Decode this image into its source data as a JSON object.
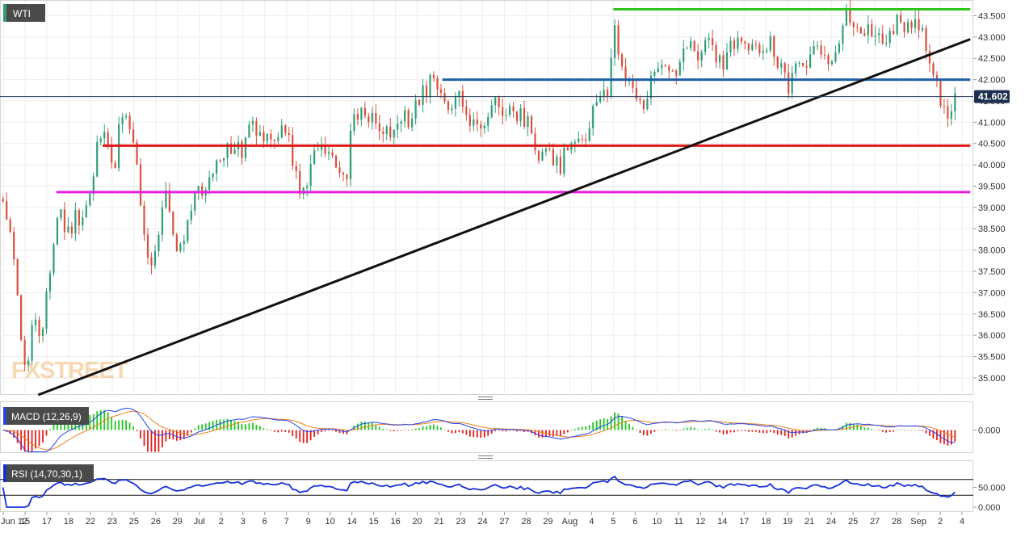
{
  "chart_data": [
    {
      "type": "candlestick",
      "panel": "price",
      "title": "WTI",
      "watermark": "FXSTREET",
      "ylim": [
        34.6,
        43.85
      ],
      "y_ticks": [
        "35.000",
        "35.500",
        "36.000",
        "36.500",
        "37.000",
        "37.500",
        "38.000",
        "38.500",
        "39.000",
        "39.500",
        "40.000",
        "40.500",
        "41.000",
        "41.500",
        "42.000",
        "42.500",
        "43.000",
        "43.500"
      ],
      "y_tick_values": [
        35,
        35.5,
        36,
        36.5,
        37,
        37.5,
        38,
        38.5,
        39,
        39.5,
        40,
        40.5,
        41,
        41.5,
        42,
        42.5,
        43,
        43.5
      ],
      "last_price_label": "41.602",
      "last_price": 41.602,
      "x_ticks": [
        "Jun 12",
        "15",
        "17",
        "18",
        "22",
        "23",
        "25",
        "26",
        "29",
        "Jul",
        "2",
        "3",
        "6",
        "7",
        "9",
        "10",
        "14",
        "15",
        "16",
        "20",
        "21",
        "23",
        "24",
        "27",
        "28",
        "29",
        "Aug",
        "4",
        "5",
        "6",
        "10",
        "11",
        "12",
        "14",
        "17",
        "18",
        "19",
        "21",
        "24",
        "25",
        "27",
        "28",
        "Sep",
        "2",
        "4"
      ],
      "close_path": [
        [
          0,
          39.2
        ],
        [
          1.2,
          38.0
        ],
        [
          2.0,
          36.2
        ],
        [
          2.6,
          35.1
        ],
        [
          3.4,
          36.7
        ],
        [
          4.1,
          35.8
        ],
        [
          4.6,
          36.9
        ],
        [
          5.4,
          38.3
        ],
        [
          6.0,
          38.9
        ],
        [
          6.8,
          38.3
        ],
        [
          7.5,
          38.9
        ],
        [
          8.2,
          38.5
        ],
        [
          9.0,
          39.3
        ],
        [
          9.8,
          40.5
        ],
        [
          10.5,
          40.6
        ],
        [
          11.4,
          40.0
        ],
        [
          12.1,
          41.4
        ],
        [
          12.9,
          41.0
        ],
        [
          13.5,
          40.1
        ],
        [
          14.2,
          38.3
        ],
        [
          15.0,
          37.3
        ],
        [
          15.7,
          38.5
        ],
        [
          16.5,
          39.3
        ],
        [
          17.2,
          38.2
        ],
        [
          18.0,
          37.9
        ],
        [
          18.8,
          39.0
        ],
        [
          19.5,
          39.4
        ],
        [
          20.3,
          39.1
        ],
        [
          21.0,
          39.8
        ],
        [
          21.8,
          40.1
        ],
        [
          22.6,
          40.3
        ],
        [
          23.4,
          40.5
        ],
        [
          24.1,
          40.3
        ],
        [
          25.0,
          40.9
        ],
        [
          25.8,
          40.6
        ],
        [
          26.6,
          40.8
        ],
        [
          27.4,
          40.5
        ],
        [
          28.2,
          40.8
        ],
        [
          29.0,
          40.3
        ],
        [
          29.6,
          39.6
        ],
        [
          30.4,
          39.3
        ],
        [
          31.2,
          40.6
        ],
        [
          31.9,
          40.4
        ],
        [
          32.7,
          40.2
        ],
        [
          33.5,
          39.8
        ],
        [
          34.3,
          39.5
        ],
        [
          35.0,
          40.9
        ],
        [
          35.8,
          41.2
        ],
        [
          36.6,
          41.1
        ],
        [
          37.4,
          40.9
        ],
        [
          38.2,
          40.7
        ],
        [
          39.0,
          40.8
        ],
        [
          39.8,
          41.0
        ],
        [
          40.6,
          41.1
        ],
        [
          41.4,
          41.5
        ],
        [
          42.2,
          41.7
        ],
        [
          43.0,
          42.0
        ],
        [
          43.8,
          41.6
        ],
        [
          44.6,
          41.3
        ],
        [
          45.4,
          41.8
        ],
        [
          46.2,
          41.1
        ],
        [
          47.0,
          40.8
        ],
        [
          47.8,
          41.1
        ],
        [
          48.6,
          41.2
        ],
        [
          49.4,
          41.6
        ],
        [
          50.2,
          41.3
        ],
        [
          51.0,
          41.4
        ],
        [
          51.8,
          41.1
        ],
        [
          52.6,
          40.9
        ],
        [
          53.4,
          40.3
        ],
        [
          54.2,
          40.5
        ],
        [
          55.0,
          40.2
        ],
        [
          55.8,
          40.0
        ],
        [
          56.6,
          40.5
        ],
        [
          57.4,
          40.8
        ],
        [
          58.2,
          40.4
        ],
        [
          59.0,
          41.2
        ],
        [
          59.8,
          41.4
        ],
        [
          60.6,
          41.9
        ],
        [
          61.0,
          43.3
        ],
        [
          61.6,
          42.5
        ],
        [
          62.4,
          42.1
        ],
        [
          63.2,
          41.7
        ],
        [
          64.0,
          41.5
        ],
        [
          64.8,
          41.9
        ],
        [
          65.6,
          42.1
        ],
        [
          66.4,
          42.4
        ],
        [
          67.2,
          42.0
        ],
        [
          68.0,
          42.5
        ],
        [
          68.8,
          42.8
        ],
        [
          69.6,
          42.6
        ],
        [
          70.4,
          42.8
        ],
        [
          71.2,
          42.5
        ],
        [
          72.0,
          42.4
        ],
        [
          72.8,
          42.9
        ],
        [
          73.6,
          43.1
        ],
        [
          74.4,
          42.7
        ],
        [
          75.2,
          42.9
        ],
        [
          76.0,
          42.7
        ],
        [
          76.8,
          42.8
        ],
        [
          77.6,
          42.3
        ],
        [
          78.4,
          41.8
        ],
        [
          79.2,
          42.3
        ],
        [
          80.0,
          42.4
        ],
        [
          80.8,
          42.6
        ],
        [
          81.6,
          42.7
        ],
        [
          82.4,
          42.5
        ],
        [
          83.2,
          42.8
        ],
        [
          84.0,
          43.5
        ],
        [
          84.8,
          43.4
        ],
        [
          85.6,
          43.3
        ],
        [
          86.4,
          43.1
        ],
        [
          87.2,
          43.2
        ],
        [
          88.0,
          43.0
        ],
        [
          88.8,
          43.3
        ],
        [
          89.6,
          43.4
        ],
        [
          90.4,
          43.1
        ],
        [
          91.2,
          43.2
        ],
        [
          92.0,
          43.1
        ],
        [
          92.6,
          42.0
        ],
        [
          93.4,
          41.7
        ],
        [
          94.2,
          40.9
        ],
        [
          95.0,
          41.6
        ]
      ],
      "levels": [
        {
          "name": "resistance-top",
          "value": 43.65,
          "color": "#2ec41c",
          "from_x": 61.0,
          "to_x": 96.5
        },
        {
          "name": "level-blue",
          "value": 42.0,
          "color": "#1f5ea8",
          "from_x": 44.0,
          "to_x": 96.5
        },
        {
          "name": "support-red",
          "value": 40.45,
          "color": "#e01818",
          "from_x": 10.2,
          "to_x": 96.5
        },
        {
          "name": "support-magenta",
          "value": 39.36,
          "color": "#e31fe3",
          "from_x": 5.6,
          "to_x": 96.5
        }
      ],
      "trendline": {
        "color": "#111111",
        "from": [
          3.8,
          34.6
        ],
        "to": [
          96.5,
          42.95
        ]
      },
      "colors": {
        "up": "#2e9e77",
        "down": "#d9503f",
        "grid": "#ededed",
        "axis_text": "#333333"
      }
    },
    {
      "type": "bar+line",
      "panel": "macd",
      "title": "MACD (12,26,9)",
      "ylim": [
        -0.75,
        0.75
      ],
      "y_ticks": [
        "0.000"
      ],
      "y_tick_values": [
        0
      ],
      "colors": {
        "pos": "#1ec81e",
        "neg": "#e51c1c",
        "macd": "#2244ee",
        "signal": "#f07f1a"
      }
    },
    {
      "type": "line",
      "panel": "rsi",
      "title": "RSI (14,70,30,1)",
      "ylim": [
        0,
        100
      ],
      "y_ticks": [
        "50.000",
        "0.000"
      ],
      "y_tick_values": [
        50,
        0
      ],
      "bands": [
        70,
        30
      ],
      "colors": {
        "line": "#1530d8",
        "band": "#111111"
      }
    }
  ]
}
